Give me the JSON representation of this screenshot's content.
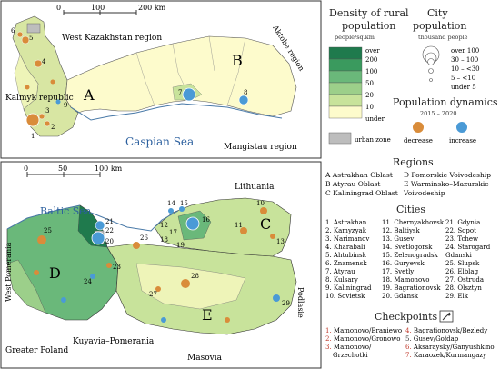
{
  "map_top": {
    "scale_labels": [
      "0",
      "100",
      "200 km"
    ],
    "regions": [
      "West Kazakhstan region",
      "Aktobe region",
      "Kalmyk republic",
      "Mangistau region"
    ],
    "sea": "Caspian Sea",
    "big_letters": [
      "A",
      "B"
    ],
    "city_numbers": [
      "1",
      "2",
      "3",
      "4",
      "5",
      "6",
      "7",
      "8",
      "9"
    ]
  },
  "map_bottom": {
    "scale_labels": [
      "0",
      "50",
      "100 km"
    ],
    "regions": [
      "Lithuania",
      "West Pomerania",
      "Greater Poland",
      "Kuyavia–Pomerania",
      "Masovia",
      "Podlasie"
    ],
    "sea": "Baltic Sea",
    "big_letters": [
      "C",
      "D",
      "E"
    ],
    "city_numbers": [
      "10",
      "11",
      "12",
      "13",
      "14",
      "15",
      "16",
      "17",
      "18",
      "19",
      "20",
      "21",
      "22",
      "23",
      "24",
      "25",
      "26",
      "27",
      "28",
      "29"
    ]
  },
  "legend": {
    "density_title": [
      "Density of rural",
      "population"
    ],
    "density_unit": "people/sq.km",
    "density_classes": [
      "over",
      "200",
      "100",
      "50",
      "20",
      "10",
      "under"
    ],
    "density_colors": [
      "#1f7a4d",
      "#3a9a5e",
      "#6ab87a",
      "#9ccf8a",
      "#c8e39b",
      "#eef4b8",
      "#fdfbcc"
    ],
    "city_title": [
      "City",
      "population"
    ],
    "city_unit": "thousand people",
    "city_classes": [
      "over 100",
      "30 – 100",
      "10 – <30",
      "5 – <10",
      "under 5"
    ],
    "dynamics_title": "Population dynamics",
    "dynamics_period": "2015 – 2020",
    "dynamics_items": [
      "decrease",
      "increase"
    ],
    "dynamics_colors": [
      "#d98c3a",
      "#4a9ad6"
    ],
    "urban_zone": "urban zone",
    "urban_color": "#bdbdbd"
  },
  "regions_list": {
    "title": "Regions",
    "col1": [
      "A  Astrakhan Oblast",
      "B  Atyrau Oblast",
      "C  Kaliningrad Oblast"
    ],
    "col2": [
      "D  Pomorskie Voivodeship",
      "E  Warminsko–Mazurskie",
      "    Voivodeship"
    ]
  },
  "cities": {
    "title": "Cities",
    "col1": [
      "1. Astrakhan",
      "2. Kamyzyak",
      "3. Narimanov",
      "4. Kharabali",
      "5. Ahtubinsk",
      "6. Znamensk",
      "7. Atyrau",
      "8. Kulsary",
      "9. Kaliningrad",
      "10. Sovietsk"
    ],
    "col2": [
      "11. Chernyakhovsk",
      "12. Baltiysk",
      "13. Gusev",
      "14. Svetlogorsk",
      "15. Zelenogradsk",
      "16. Guryevsk",
      "17. Svetly",
      "18. Mamonovo",
      "19. Bagrationovsk",
      "20. Gdansk"
    ],
    "col3": [
      "21. Gdynia",
      "22. Sopot",
      "23. Tchew",
      "24. Starogard",
      "    Gdanski",
      "25. Slupsk",
      "26. Elblag",
      "27. Ostruda",
      "28. Olsztyn",
      "29. Elk"
    ]
  },
  "checkpoints": {
    "title": "Checkpoints",
    "col1": [
      {
        "num": "1.",
        "name": "Mamonovo/Braniewo",
        "color": "#c0392b"
      },
      {
        "num": "2.",
        "name": "Mamonovo/Gronowo",
        "color": "#c0392b"
      },
      {
        "num": "3.",
        "name": "Mamonovo/",
        "color": "#c0392b"
      },
      {
        "num": "",
        "name": "Grzechotki",
        "color": "#333333"
      }
    ],
    "col2": [
      {
        "num": "4.",
        "name": "Bagrationovsk/Bezledy",
        "color": "#c0392b"
      },
      {
        "num": "5.",
        "name": "Gusev/Gołdap",
        "color": "#333333"
      },
      {
        "num": "6.",
        "name": "Aksaraysky/Ganyushkino",
        "color": "#c0392b"
      },
      {
        "num": "7.",
        "name": "Karaozek/Kurmangazy",
        "color": "#c0392b"
      }
    ]
  }
}
